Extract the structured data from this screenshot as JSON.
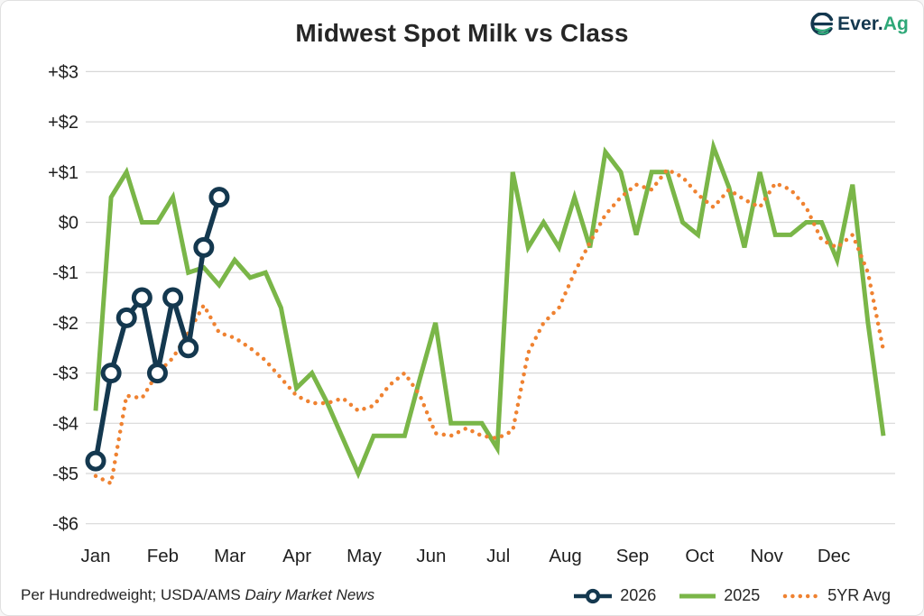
{
  "header": {
    "title": "Midwest Spot Milk vs Class",
    "logo": {
      "text_primary": "Ever.",
      "text_secondary": "Ag",
      "primary_color": "#14384F",
      "secondary_color": "#2EA878"
    }
  },
  "footer": {
    "text": "Per Hundredweight; USDA/AMS ",
    "publication": "Dairy Market News"
  },
  "legend": {
    "items": [
      {
        "label": "2026",
        "swatch": "line-with-ring-marker",
        "color": "#14384F"
      },
      {
        "label": "2025",
        "swatch": "solid-line",
        "color": "#7AB648"
      },
      {
        "label": "5YR Avg",
        "swatch": "dotted-line",
        "color": "#EF8231"
      }
    ]
  },
  "colors": {
    "grid": "#d8d8d8",
    "axis_text": "#1f1f1f",
    "navy": "#14384F",
    "green": "#7AB648",
    "orange": "#EF8231"
  },
  "chart_data": {
    "type": "line",
    "title": "Midwest Spot Milk vs Class",
    "xlabel": "",
    "ylabel": "",
    "grid": "horizontal",
    "legend_position": "bottom-right",
    "y_axis": {
      "tick_labels": [
        "+$3",
        "+$2",
        "+$1",
        "$0",
        "-$1",
        "-$2",
        "-$3",
        "-$4",
        "-$5",
        "-$6"
      ],
      "tick_values": [
        3,
        2,
        1,
        0,
        -1,
        -2,
        -3,
        -4,
        -5,
        -6
      ],
      "ylim": [
        -6,
        3
      ]
    },
    "x_axis": {
      "month_labels": [
        "Jan",
        "Feb",
        "Mar",
        "Apr",
        "May",
        "Jun",
        "Jul",
        "Aug",
        "Sep",
        "Oct",
        "Nov",
        "Dec"
      ],
      "weeks_per_year": 52
    },
    "series": [
      {
        "name": "2026",
        "style": "solid-with-ring-markers",
        "color": "#14384F",
        "start_week": 1,
        "values": [
          -4.75,
          -3.0,
          -1.9,
          -1.5,
          -3.0,
          -1.5,
          -2.5,
          -0.5,
          0.5
        ]
      },
      {
        "name": "2025",
        "style": "solid",
        "color": "#7AB648",
        "start_week": 1,
        "values": [
          -3.75,
          0.5,
          1.0,
          0.0,
          0.0,
          0.5,
          -1.0,
          -0.9,
          -1.25,
          -0.75,
          -1.1,
          -1.0,
          -1.7,
          -3.3,
          -3.0,
          -3.6,
          -4.3,
          -5.0,
          -4.25,
          -4.25,
          -4.25,
          -3.1,
          -2.0,
          -4.0,
          -4.0,
          -4.0,
          -4.5,
          1.0,
          -0.5,
          0.0,
          -0.5,
          0.5,
          -0.5,
          1.4,
          1.0,
          -0.25,
          1.0,
          1.0,
          0.0,
          -0.25,
          1.5,
          0.7,
          -0.5,
          1.0,
          -0.25,
          -0.25,
          0.0,
          0.0,
          -0.75,
          0.75,
          -2.0,
          -4.25
        ]
      },
      {
        "name": "5YR Avg",
        "style": "dotted",
        "color": "#EF8231",
        "start_week": 1,
        "values": [
          -5.05,
          -5.2,
          -3.45,
          -3.5,
          -3.0,
          -2.7,
          -2.2,
          -1.65,
          -2.2,
          -2.3,
          -2.5,
          -2.75,
          -3.1,
          -3.45,
          -3.6,
          -3.6,
          -3.5,
          -3.75,
          -3.65,
          -3.25,
          -3.0,
          -3.45,
          -4.2,
          -4.25,
          -4.1,
          -4.25,
          -4.3,
          -4.15,
          -2.6,
          -2.0,
          -1.7,
          -1.0,
          -0.4,
          0.15,
          0.5,
          0.75,
          0.65,
          1.05,
          0.9,
          0.55,
          0.3,
          0.65,
          0.45,
          0.3,
          0.78,
          0.65,
          0.3,
          -0.35,
          -0.5,
          -0.25,
          -1.0,
          -2.55
        ]
      }
    ]
  }
}
